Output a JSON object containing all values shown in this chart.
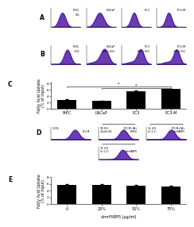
{
  "panel_c": {
    "categories": [
      "PrEC",
      "LNCaP",
      "PC3",
      "PC3-M"
    ],
    "values": [
      2.8,
      2.5,
      5.5,
      6.2
    ],
    "errors": [
      0.2,
      0.15,
      0.25,
      0.2
    ],
    "ylabel": "Fatty Acid Uptake\n(% of Input)",
    "bar_color": "#000000",
    "ylim": [
      0,
      8.5
    ],
    "yticks": [
      0,
      2,
      4,
      6,
      8
    ]
  },
  "panel_e": {
    "categories": [
      "0",
      "25%",
      "50%",
      "75%"
    ],
    "values": [
      5.8,
      5.7,
      5.5,
      5.3
    ],
    "errors": [
      0.15,
      0.2,
      0.25,
      0.2
    ],
    "ylabel": "Fatty Acid Uptake\n(% of Input)",
    "xlabel": "dmrFABP5 (µg/ml)",
    "bar_color": "#000000",
    "ylim": [
      0,
      8
    ],
    "yticks": [
      0,
      2,
      4,
      6,
      8
    ]
  },
  "hist_color": "#5522aa",
  "hist_edge": "#330088",
  "bg_color": "#ffffff",
  "label_fontsize": 3.5,
  "tick_fontsize": 3.0,
  "panel_label_fontsize": 5.5,
  "histo_text_fontsize": 2.5
}
